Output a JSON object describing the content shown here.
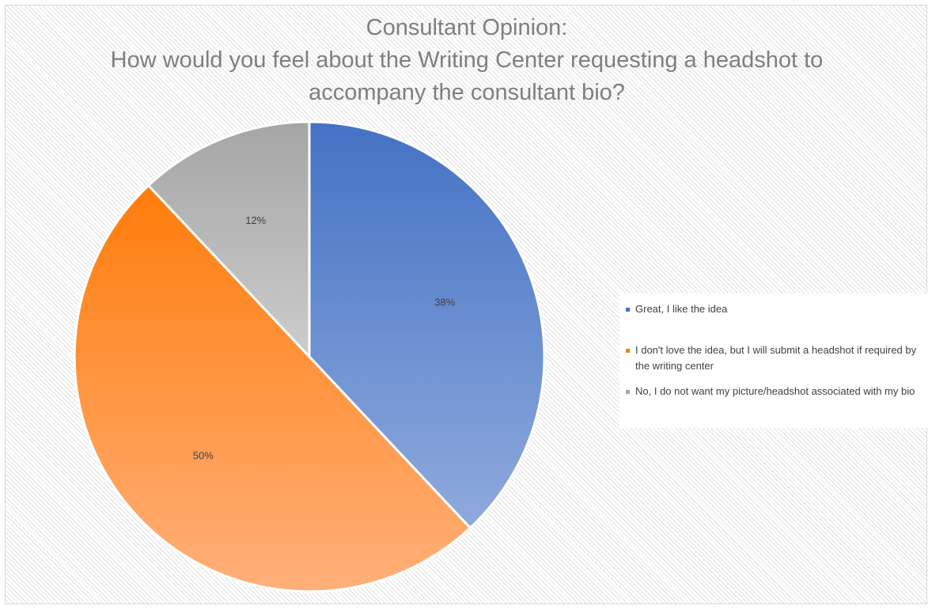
{
  "chart_data": {
    "type": "pie",
    "title_lines": [
      "Consultant Opinion:",
      "How would you feel about the Writing Center requesting a headshot to",
      "accompany the consultant bio?"
    ],
    "slices": [
      {
        "label": "Great, I like the idea",
        "value": 38,
        "display": "38%",
        "color": "#4472c4",
        "color_light": "#8faadc"
      },
      {
        "label": "I don't love the idea, but I will submit a headshot if required by the writing center",
        "value": 50,
        "display": "50%",
        "color": "#ff7c0a",
        "color_light": "#ffb07a"
      },
      {
        "label": "No, I do not want my picture/headshot associated with my bio",
        "value": 12,
        "display": "12%",
        "color": "#a5a5a5",
        "color_light": "#cccccc"
      }
    ],
    "start_angle": "12 o'clock",
    "direction": "clockwise",
    "legend_position": "right"
  }
}
